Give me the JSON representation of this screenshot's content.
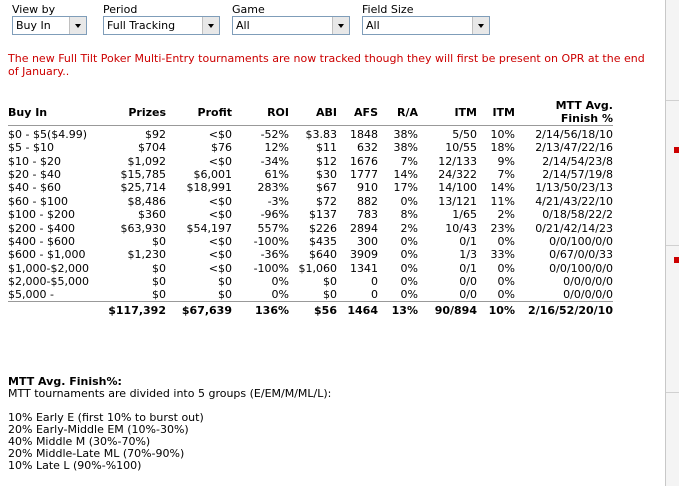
{
  "filters": {
    "view_by": {
      "label": "View by",
      "value": "Buy In"
    },
    "period": {
      "label": "Period",
      "value": "Full Tracking"
    },
    "game": {
      "label": "Game",
      "value": "All"
    },
    "field_size": {
      "label": "Field Size",
      "value": "All"
    }
  },
  "notice": "The new Full Tilt Poker Multi-Entry tournaments are now tracked though they will first be present on OPR at the end of January..",
  "table": {
    "headers": [
      "Buy In",
      "Prizes",
      "Profit",
      "ROI",
      "ABI",
      "AFS",
      "R/A",
      "ITM",
      "ITM",
      "MTT Avg. Finish %"
    ],
    "rows": [
      [
        "$0 - $5($4.99)",
        "$92",
        "<$0",
        "-52%",
        "$3.83",
        "1848",
        "38%",
        "5/50",
        "10%",
        "2/14/56/18/10"
      ],
      [
        "$5 - $10",
        "$704",
        "$76",
        "12%",
        "$11",
        "632",
        "38%",
        "10/55",
        "18%",
        "2/13/47/22/16"
      ],
      [
        "$10 - $20",
        "$1,092",
        "<$0",
        "-34%",
        "$12",
        "1676",
        "7%",
        "12/133",
        "9%",
        "2/14/54/23/8"
      ],
      [
        "$20 - $40",
        "$15,785",
        "$6,001",
        "61%",
        "$30",
        "1777",
        "14%",
        "24/322",
        "7%",
        "2/14/57/19/8"
      ],
      [
        "$40 - $60",
        "$25,714",
        "$18,991",
        "283%",
        "$67",
        "910",
        "17%",
        "14/100",
        "14%",
        "1/13/50/23/13"
      ],
      [
        "$60 - $100",
        "$8,486",
        "<$0",
        "-3%",
        "$72",
        "882",
        "0%",
        "13/121",
        "11%",
        "4/21/43/22/10"
      ],
      [
        "$100 - $200",
        "$360",
        "<$0",
        "-96%",
        "$137",
        "783",
        "8%",
        "1/65",
        "2%",
        "0/18/58/22/2"
      ],
      [
        "$200 - $400",
        "$63,930",
        "$54,197",
        "557%",
        "$226",
        "2894",
        "2%",
        "10/43",
        "23%",
        "0/21/42/14/23"
      ],
      [
        "$400 - $600",
        "$0",
        "<$0",
        "-100%",
        "$435",
        "300",
        "0%",
        "0/1",
        "0%",
        "0/0/100/0/0"
      ],
      [
        "$600 - $1,000",
        "$1,230",
        "<$0",
        "-36%",
        "$640",
        "3909",
        "0%",
        "1/3",
        "33%",
        "0/67/0/0/33"
      ],
      [
        "$1,000-$2,000",
        "$0",
        "<$0",
        "-100%",
        "$1,060",
        "1341",
        "0%",
        "0/1",
        "0%",
        "0/0/100/0/0"
      ],
      [
        "$2,000-$5,000",
        "$0",
        "$0",
        "0%",
        "$0",
        "0",
        "0%",
        "0/0",
        "0%",
        "0/0/0/0/0"
      ],
      [
        "$5,000 -",
        "$0",
        "$0",
        "0%",
        "$0",
        "0",
        "0%",
        "0/0",
        "0%",
        "0/0/0/0/0"
      ]
    ],
    "total": [
      "",
      "$117,392",
      "$67,639",
      "136%",
      "$56",
      "1464",
      "13%",
      "90/894",
      "10%",
      "2/16/52/20/10"
    ]
  },
  "legend": {
    "title": "MTT Avg. Finish%:",
    "intro": "MTT tournaments are divided into 5 groups (E/EM/M/ML/L):",
    "items": [
      "10% Early E (first 10% to burst out)",
      "20% Early-Middle EM (10%-30%)",
      "40% Middle M (30%-70%)",
      "20% Middle-Late ML (70%-90%)",
      "10% Late L (90%-%100)"
    ]
  },
  "colors": {
    "notice": "#cc0000",
    "side_accent": "#cc0000"
  }
}
